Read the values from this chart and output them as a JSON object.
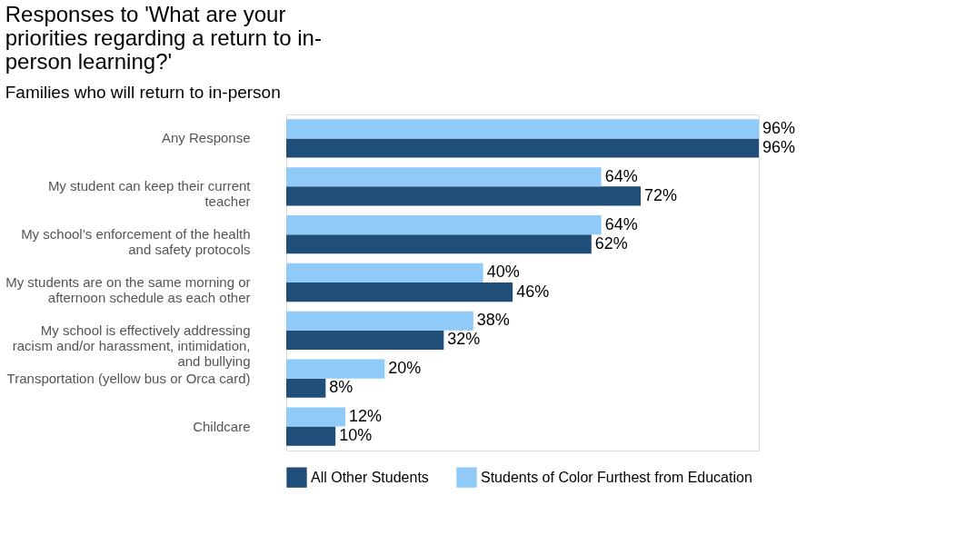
{
  "chart_data": {
    "type": "bar",
    "orientation": "horizontal",
    "title": "Responses to 'What are your priorities regarding a return to in-person learning?'",
    "subtitle": "Families who will return to in-person",
    "categories": [
      "Any Response",
      "My student can keep their current teacher",
      "My school’s enforcement of the health and safety protocols",
      "My students are on the same morning or afternoon schedule as each other",
      "My school is effectively addressing racism and/or harassment, intimidation, and bullying",
      "Transportation (yellow bus or Orca card)",
      "Childcare"
    ],
    "series": [
      {
        "name": "All Other Students",
        "color": "#1f4e79",
        "values": [
          96,
          72,
          62,
          46,
          32,
          8,
          10
        ],
        "value_labels": [
          "96%",
          "72%",
          "62%",
          "46%",
          "32%",
          "8%",
          "10%"
        ]
      },
      {
        "name": "Students of Color Furthest from Education",
        "color": "#90caf9",
        "values": [
          96,
          64,
          64,
          40,
          38,
          20,
          12
        ],
        "value_labels": [
          "96%",
          "64%",
          "64%",
          "40%",
          "38%",
          "20%",
          "12%"
        ]
      }
    ],
    "legend": "bottom"
  }
}
